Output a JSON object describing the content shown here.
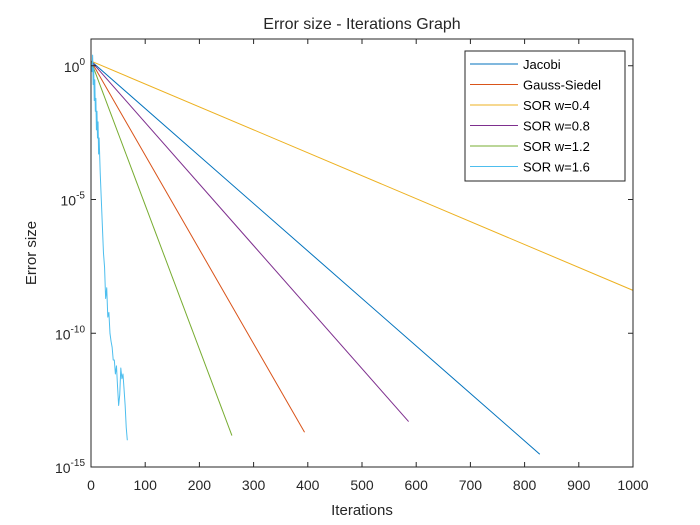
{
  "chart_data": {
    "type": "line",
    "title": "Error size - Iterations Graph",
    "xlabel": "Iterations",
    "ylabel": "Error size",
    "xlim": [
      0,
      1000
    ],
    "ylim": [
      1e-15,
      10
    ],
    "yscale": "log",
    "grid": false,
    "legend_position": "top-right",
    "xticks": [
      {
        "value": 0,
        "label": "0"
      },
      {
        "value": 100,
        "label": "100"
      },
      {
        "value": 200,
        "label": "200"
      },
      {
        "value": 300,
        "label": "300"
      },
      {
        "value": 400,
        "label": "400"
      },
      {
        "value": 500,
        "label": "500"
      },
      {
        "value": 600,
        "label": "600"
      },
      {
        "value": 700,
        "label": "700"
      },
      {
        "value": 800,
        "label": "800"
      },
      {
        "value": 900,
        "label": "900"
      },
      {
        "value": 1000,
        "label": "1000"
      }
    ],
    "yticks": [
      {
        "exponent": 0,
        "base": "10",
        "exp": "0"
      },
      {
        "exponent": -5,
        "base": "10",
        "exp": "-5"
      },
      {
        "exponent": -10,
        "base": "10",
        "exp": "-10"
      },
      {
        "exponent": -15,
        "base": "10",
        "exp": "-15"
      }
    ],
    "series": [
      {
        "name": "Jacobi",
        "color": "#0072BD",
        "x": [
          0,
          828
        ],
        "y": [
          1.5,
          3e-15
        ]
      },
      {
        "name": "Gauss-Siedel",
        "color": "#D95319",
        "x": [
          0,
          394
        ],
        "y": [
          1.5,
          2e-14
        ]
      },
      {
        "name": "SOR w=0.4",
        "color": "#EDB120",
        "x": [
          0,
          1000
        ],
        "y": [
          1.5,
          4e-09
        ]
      },
      {
        "name": "SOR w=0.8",
        "color": "#7E2F8E",
        "x": [
          0,
          586
        ],
        "y": [
          1.5,
          5e-14
        ]
      },
      {
        "name": "SOR w=1.2",
        "color": "#77AC30",
        "x": [
          0,
          260
        ],
        "y": [
          1.5,
          1.5e-14
        ]
      },
      {
        "name": "SOR w=1.6",
        "color": "#4DBEEE",
        "x": [
          0,
          2,
          3,
          4,
          5,
          6,
          7,
          8,
          9,
          10,
          11,
          12,
          13,
          14,
          15,
          17,
          19,
          21,
          23,
          25,
          27,
          29,
          31,
          33,
          35,
          37,
          39,
          41,
          43,
          45,
          47,
          49,
          51,
          53,
          55,
          57,
          59,
          61,
          63,
          65,
          67
        ],
        "y": [
          1.5,
          0.6,
          2.5,
          0.2,
          0.8,
          0.05,
          0.3,
          0.02,
          0.06,
          0.004,
          0.02,
          0.002,
          0.008,
          0.0005,
          0.002,
          0.0001,
          1e-05,
          1e-06,
          1e-07,
          3e-08,
          2e-09,
          5e-09,
          4e-10,
          6e-10,
          1e-10,
          5e-11,
          3e-11,
          1e-11,
          1e-11,
          3e-12,
          6e-12,
          1e-12,
          2e-13,
          5e-13,
          5e-12,
          2e-12,
          3e-12,
          8e-13,
          2e-13,
          3e-14,
          1e-14
        ]
      }
    ]
  }
}
